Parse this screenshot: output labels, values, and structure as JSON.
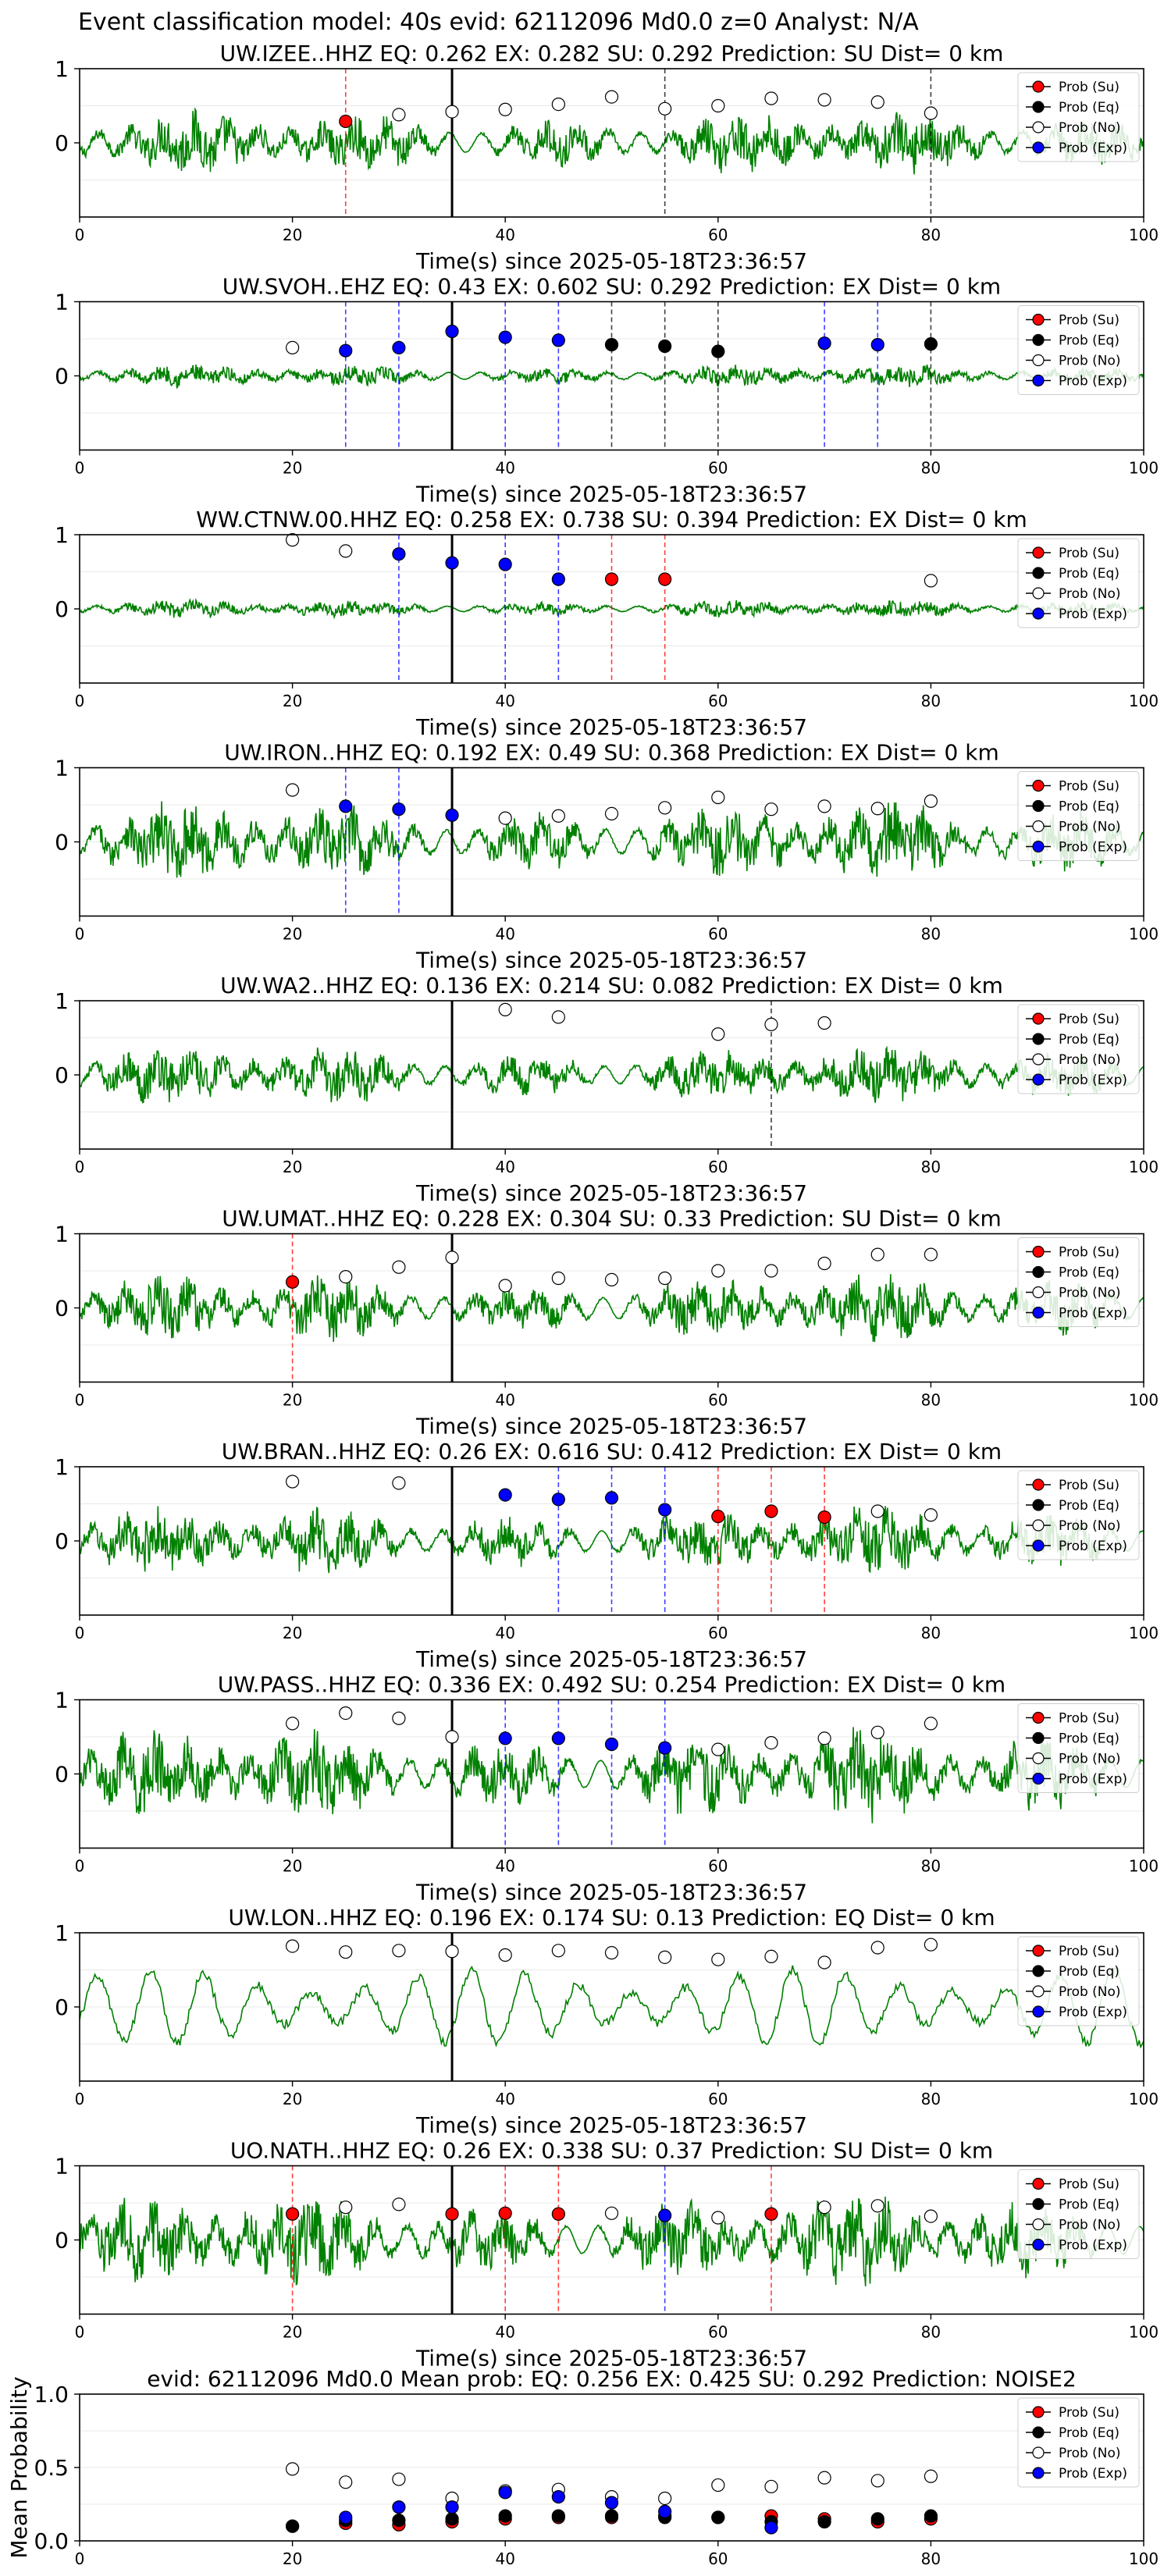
{
  "figure": {
    "suptitle": "Event classification model: 40s evid: 62112096 Md0.0 z=0 Analyst: N/A"
  },
  "colors": {
    "trace": "#008000",
    "su": "#ff0000",
    "eq": "#000000",
    "no": "#ffffff",
    "exp": "#0000ff",
    "origin_line": "#000000"
  },
  "legend": {
    "entries": [
      "Prob (Su)",
      "Prob (Eq)",
      "Prob (No)",
      "Prob (Exp)"
    ],
    "placement": "upper-right"
  },
  "chart_data": [
    {
      "type": "line",
      "title": "UW.IZEE..HHZ   EQ: 0.262  EX: 0.282  SU: 0.292   Prediction: SU    Dist= 0 km",
      "xlabel": "Time(s) since 2025-05-18T23:36:57",
      "ylabel": "",
      "xlim": [
        0,
        100
      ],
      "ylim": [
        -1,
        1
      ],
      "xticks": [
        "0",
        "20",
        "40",
        "60",
        "80",
        "100"
      ],
      "yticks": [
        "0",
        "1"
      ],
      "origin_time": 35,
      "trace": {
        "amplitude": 0.28
      },
      "points": {
        "su": [
          [
            25,
            0.29
          ]
        ],
        "eq": [],
        "no": [
          [
            30,
            0.38
          ],
          [
            35,
            0.42
          ],
          [
            40,
            0.45
          ],
          [
            45,
            0.52
          ],
          [
            50,
            0.62
          ],
          [
            55,
            0.46
          ],
          [
            60,
            0.5
          ],
          [
            65,
            0.6
          ],
          [
            70,
            0.58
          ],
          [
            75,
            0.55
          ],
          [
            80,
            0.4
          ]
        ],
        "exp": []
      },
      "vlines": [
        {
          "x": 25,
          "cls": "su"
        },
        {
          "x": 55,
          "cls": "no"
        },
        {
          "x": 80,
          "cls": "no"
        }
      ]
    },
    {
      "type": "line",
      "title": "UW.SVOH..EHZ   EQ: 0.43  EX: 0.602  SU: 0.292   Prediction: EX    Dist= 0 km",
      "xlabel": "Time(s) since 2025-05-18T23:36:57",
      "ylabel": "",
      "xlim": [
        0,
        100
      ],
      "ylim": [
        -1,
        1
      ],
      "xticks": [
        "0",
        "20",
        "40",
        "60",
        "80",
        "100"
      ],
      "yticks": [
        "0",
        "1"
      ],
      "origin_time": 35,
      "trace": {
        "amplitude": 0.1
      },
      "points": {
        "su": [],
        "eq": [
          [
            50,
            0.42
          ],
          [
            55,
            0.4
          ],
          [
            60,
            0.33
          ],
          [
            80,
            0.43
          ]
        ],
        "no": [
          [
            20,
            0.38
          ]
        ],
        "exp": [
          [
            25,
            0.34
          ],
          [
            30,
            0.38
          ],
          [
            35,
            0.6
          ],
          [
            40,
            0.52
          ],
          [
            45,
            0.48
          ],
          [
            70,
            0.44
          ],
          [
            75,
            0.42
          ]
        ]
      },
      "vlines": [
        {
          "x": 25,
          "cls": "exp"
        },
        {
          "x": 30,
          "cls": "exp"
        },
        {
          "x": 40,
          "cls": "exp"
        },
        {
          "x": 45,
          "cls": "exp"
        },
        {
          "x": 50,
          "cls": "eq"
        },
        {
          "x": 55,
          "cls": "eq"
        },
        {
          "x": 60,
          "cls": "eq"
        },
        {
          "x": 70,
          "cls": "exp"
        },
        {
          "x": 75,
          "cls": "exp"
        },
        {
          "x": 80,
          "cls": "eq"
        }
      ]
    },
    {
      "type": "line",
      "title": "WW.CTNW.00.HHZ   EQ: 0.258  EX: 0.738  SU: 0.394   Prediction: EX    Dist= 0 km",
      "xlabel": "Time(s) since 2025-05-18T23:36:57",
      "ylabel": "",
      "xlim": [
        0,
        100
      ],
      "ylim": [
        -1,
        1
      ],
      "xticks": [
        "0",
        "20",
        "40",
        "60",
        "80",
        "100"
      ],
      "yticks": [
        "0",
        "1"
      ],
      "origin_time": 35,
      "trace": {
        "amplitude": 0.08
      },
      "points": {
        "su": [
          [
            50,
            0.4
          ],
          [
            55,
            0.4
          ]
        ],
        "eq": [],
        "no": [
          [
            20,
            0.93
          ],
          [
            25,
            0.78
          ],
          [
            80,
            0.38
          ]
        ],
        "exp": [
          [
            30,
            0.74
          ],
          [
            35,
            0.62
          ],
          [
            40,
            0.6
          ],
          [
            45,
            0.4
          ]
        ]
      },
      "vlines": [
        {
          "x": 30,
          "cls": "exp"
        },
        {
          "x": 40,
          "cls": "exp"
        },
        {
          "x": 45,
          "cls": "exp"
        },
        {
          "x": 50,
          "cls": "su"
        },
        {
          "x": 55,
          "cls": "su"
        }
      ]
    },
    {
      "type": "line",
      "title": "UW.IRON..HHZ   EQ: 0.192  EX: 0.49  SU: 0.368   Prediction: EX    Dist= 0 km",
      "xlabel": "Time(s) since 2025-05-18T23:36:57",
      "ylabel": "",
      "xlim": [
        0,
        100
      ],
      "ylim": [
        -1,
        1
      ],
      "xticks": [
        "0",
        "20",
        "40",
        "60",
        "80",
        "100"
      ],
      "yticks": [
        "0",
        "1"
      ],
      "origin_time": 35,
      "trace": {
        "amplitude": 0.35
      },
      "points": {
        "su": [],
        "eq": [],
        "no": [
          [
            20,
            0.7
          ],
          [
            40,
            0.32
          ],
          [
            45,
            0.35
          ],
          [
            50,
            0.38
          ],
          [
            55,
            0.46
          ],
          [
            60,
            0.6
          ],
          [
            65,
            0.44
          ],
          [
            70,
            0.48
          ],
          [
            75,
            0.45
          ],
          [
            80,
            0.55
          ]
        ],
        "exp": [
          [
            25,
            0.48
          ],
          [
            30,
            0.44
          ],
          [
            35,
            0.36
          ]
        ]
      },
      "vlines": [
        {
          "x": 25,
          "cls": "exp"
        },
        {
          "x": 30,
          "cls": "exp"
        }
      ]
    },
    {
      "type": "line",
      "title": "UW.WA2..HHZ   EQ: 0.136  EX: 0.214  SU: 0.082   Prediction: EX    Dist= 0 km",
      "xlabel": "Time(s) since 2025-05-18T23:36:57",
      "ylabel": "",
      "xlim": [
        0,
        100
      ],
      "ylim": [
        -1,
        1
      ],
      "xticks": [
        "0",
        "20",
        "40",
        "60",
        "80",
        "100"
      ],
      "yticks": [
        "0",
        "1"
      ],
      "origin_time": 35,
      "trace": {
        "amplitude": 0.26
      },
      "points": {
        "su": [],
        "eq": [],
        "no": [
          [
            40,
            0.88
          ],
          [
            45,
            0.78
          ],
          [
            60,
            0.55
          ],
          [
            65,
            0.68
          ],
          [
            70,
            0.7
          ]
        ],
        "exp": []
      },
      "vlines": [
        {
          "x": 65,
          "cls": "no"
        }
      ]
    },
    {
      "type": "line",
      "title": "UW.UMAT..HHZ   EQ: 0.228  EX: 0.304  SU: 0.33   Prediction: SU    Dist= 0 km",
      "xlabel": "Time(s) since 2025-05-18T23:36:57",
      "ylabel": "",
      "xlim": [
        0,
        100
      ],
      "ylim": [
        -1,
        1
      ],
      "xticks": [
        "0",
        "20",
        "40",
        "60",
        "80",
        "100"
      ],
      "yticks": [
        "0",
        "1"
      ],
      "origin_time": 35,
      "trace": {
        "amplitude": 0.3
      },
      "points": {
        "su": [
          [
            20,
            0.35
          ]
        ],
        "eq": [],
        "no": [
          [
            25,
            0.42
          ],
          [
            30,
            0.55
          ],
          [
            35,
            0.68
          ],
          [
            40,
            0.3
          ],
          [
            45,
            0.4
          ],
          [
            50,
            0.38
          ],
          [
            55,
            0.4
          ],
          [
            60,
            0.5
          ],
          [
            65,
            0.5
          ],
          [
            70,
            0.6
          ],
          [
            75,
            0.72
          ],
          [
            80,
            0.72
          ]
        ],
        "exp": []
      },
      "vlines": [
        {
          "x": 20,
          "cls": "su"
        }
      ]
    },
    {
      "type": "line",
      "title": "UW.BRAN..HHZ   EQ: 0.26  EX: 0.616  SU: 0.412   Prediction: EX    Dist= 0 km",
      "xlabel": "Time(s) since 2025-05-18T23:36:57",
      "ylabel": "",
      "xlim": [
        0,
        100
      ],
      "ylim": [
        -1,
        1
      ],
      "xticks": [
        "0",
        "20",
        "40",
        "60",
        "80",
        "100"
      ],
      "yticks": [
        "0",
        "1"
      ],
      "origin_time": 35,
      "trace": {
        "amplitude": 0.3
      },
      "points": {
        "su": [
          [
            60,
            0.33
          ],
          [
            65,
            0.4
          ],
          [
            70,
            0.32
          ]
        ],
        "eq": [],
        "no": [
          [
            20,
            0.8
          ],
          [
            30,
            0.78
          ],
          [
            75,
            0.4
          ],
          [
            80,
            0.35
          ]
        ],
        "exp": [
          [
            40,
            0.62
          ],
          [
            45,
            0.56
          ],
          [
            50,
            0.58
          ],
          [
            55,
            0.42
          ]
        ]
      },
      "vlines": [
        {
          "x": 45,
          "cls": "exp"
        },
        {
          "x": 50,
          "cls": "exp"
        },
        {
          "x": 55,
          "cls": "exp"
        },
        {
          "x": 60,
          "cls": "su"
        },
        {
          "x": 65,
          "cls": "su"
        },
        {
          "x": 70,
          "cls": "su"
        }
      ]
    },
    {
      "type": "line",
      "title": "UW.PASS..HHZ   EQ: 0.336  EX: 0.492  SU: 0.254   Prediction: EX    Dist= 0 km",
      "xlabel": "Time(s) since 2025-05-18T23:36:57",
      "ylabel": "",
      "xlim": [
        0,
        100
      ],
      "ylim": [
        -1,
        1
      ],
      "xticks": [
        "0",
        "20",
        "40",
        "60",
        "80",
        "100"
      ],
      "yticks": [
        "0",
        "1"
      ],
      "origin_time": 35,
      "trace": {
        "amplitude": 0.4
      },
      "points": {
        "su": [],
        "eq": [],
        "no": [
          [
            20,
            0.68
          ],
          [
            25,
            0.82
          ],
          [
            30,
            0.75
          ],
          [
            35,
            0.5
          ],
          [
            60,
            0.33
          ],
          [
            65,
            0.42
          ],
          [
            70,
            0.48
          ],
          [
            75,
            0.56
          ],
          [
            80,
            0.68
          ]
        ],
        "exp": [
          [
            40,
            0.48
          ],
          [
            45,
            0.48
          ],
          [
            50,
            0.4
          ],
          [
            55,
            0.35
          ]
        ]
      },
      "vlines": [
        {
          "x": 40,
          "cls": "exp"
        },
        {
          "x": 45,
          "cls": "exp"
        },
        {
          "x": 50,
          "cls": "exp"
        },
        {
          "x": 55,
          "cls": "exp"
        }
      ]
    },
    {
      "type": "line",
      "title": "UW.LON..HHZ   EQ: 0.196  EX: 0.174  SU: 0.13   Prediction: EQ    Dist= 0 km",
      "xlabel": "Time(s) since 2025-05-18T23:36:57",
      "ylabel": "",
      "xlim": [
        0,
        100
      ],
      "ylim": [
        -1,
        1
      ],
      "xticks": [
        "0",
        "20",
        "40",
        "60",
        "80",
        "100"
      ],
      "yticks": [
        "0",
        "1"
      ],
      "origin_time": 35,
      "trace": {
        "amplitude": 0.5,
        "smooth": true
      },
      "points": {
        "su": [],
        "eq": [],
        "no": [
          [
            20,
            0.82
          ],
          [
            25,
            0.74
          ],
          [
            30,
            0.76
          ],
          [
            35,
            0.75
          ],
          [
            40,
            0.7
          ],
          [
            45,
            0.76
          ],
          [
            50,
            0.73
          ],
          [
            55,
            0.67
          ],
          [
            60,
            0.64
          ],
          [
            65,
            0.68
          ],
          [
            70,
            0.6
          ],
          [
            75,
            0.8
          ],
          [
            80,
            0.84
          ]
        ],
        "exp": []
      },
      "vlines": []
    },
    {
      "type": "line",
      "title": "UO.NATH..HHZ   EQ: 0.26  EX: 0.338  SU: 0.37   Prediction: SU    Dist= 0 km",
      "xlabel": "Time(s) since 2025-05-18T23:36:57",
      "ylabel": "",
      "xlim": [
        0,
        100
      ],
      "ylim": [
        -1,
        1
      ],
      "xticks": [
        "0",
        "20",
        "40",
        "60",
        "80",
        "100"
      ],
      "yticks": [
        "0",
        "1"
      ],
      "origin_time": 35,
      "trace": {
        "amplitude": 0.4
      },
      "points": {
        "su": [
          [
            20,
            0.35
          ],
          [
            35,
            0.35
          ],
          [
            40,
            0.36
          ],
          [
            45,
            0.35
          ],
          [
            65,
            0.35
          ]
        ],
        "eq": [],
        "no": [
          [
            25,
            0.44
          ],
          [
            30,
            0.48
          ],
          [
            50,
            0.36
          ],
          [
            60,
            0.3
          ],
          [
            70,
            0.44
          ],
          [
            75,
            0.46
          ],
          [
            80,
            0.32
          ]
        ],
        "exp": [
          [
            55,
            0.33
          ]
        ]
      },
      "vlines": [
        {
          "x": 20,
          "cls": "su"
        },
        {
          "x": 40,
          "cls": "su"
        },
        {
          "x": 45,
          "cls": "su"
        },
        {
          "x": 55,
          "cls": "exp"
        },
        {
          "x": 65,
          "cls": "su"
        }
      ]
    },
    {
      "type": "scatter",
      "title": "evid: 62112096  Md0.0   Mean prob:   EQ: 0.256  EX: 0.425  SU: 0.292   Prediction: NOISE2",
      "xlabel": "",
      "ylabel": "Mean Probability",
      "xlim": [
        0,
        100
      ],
      "ylim": [
        0,
        1
      ],
      "xticks": [
        "0",
        "20",
        "40",
        "60",
        "80",
        "100"
      ],
      "yticks": [
        "0.0",
        "0.5",
        "1.0"
      ],
      "origin_time": null,
      "points": {
        "su": [
          [
            20,
            0.1
          ],
          [
            25,
            0.12
          ],
          [
            30,
            0.11
          ],
          [
            35,
            0.13
          ],
          [
            40,
            0.15
          ],
          [
            45,
            0.16
          ],
          [
            50,
            0.16
          ],
          [
            55,
            0.17
          ],
          [
            60,
            0.16
          ],
          [
            65,
            0.17
          ],
          [
            70,
            0.15
          ],
          [
            75,
            0.13
          ],
          [
            80,
            0.15
          ]
        ],
        "eq": [
          [
            20,
            0.1
          ],
          [
            25,
            0.14
          ],
          [
            30,
            0.14
          ],
          [
            35,
            0.15
          ],
          [
            40,
            0.17
          ],
          [
            45,
            0.17
          ],
          [
            50,
            0.17
          ],
          [
            55,
            0.16
          ],
          [
            60,
            0.16
          ],
          [
            65,
            0.13
          ],
          [
            70,
            0.13
          ],
          [
            75,
            0.15
          ],
          [
            80,
            0.17
          ]
        ],
        "no": [
          [
            20,
            0.49
          ],
          [
            25,
            0.4
          ],
          [
            30,
            0.42
          ],
          [
            35,
            0.29
          ],
          [
            40,
            0.34
          ],
          [
            45,
            0.35
          ],
          [
            50,
            0.3
          ],
          [
            55,
            0.29
          ],
          [
            60,
            0.38
          ],
          [
            65,
            0.37
          ],
          [
            70,
            0.43
          ],
          [
            75,
            0.41
          ],
          [
            80,
            0.44
          ]
        ],
        "exp": [
          [
            25,
            0.16
          ],
          [
            30,
            0.23
          ],
          [
            35,
            0.23
          ],
          [
            40,
            0.33
          ],
          [
            45,
            0.3
          ],
          [
            50,
            0.26
          ],
          [
            55,
            0.2
          ],
          [
            65,
            0.09
          ]
        ]
      },
      "vlines": []
    }
  ]
}
